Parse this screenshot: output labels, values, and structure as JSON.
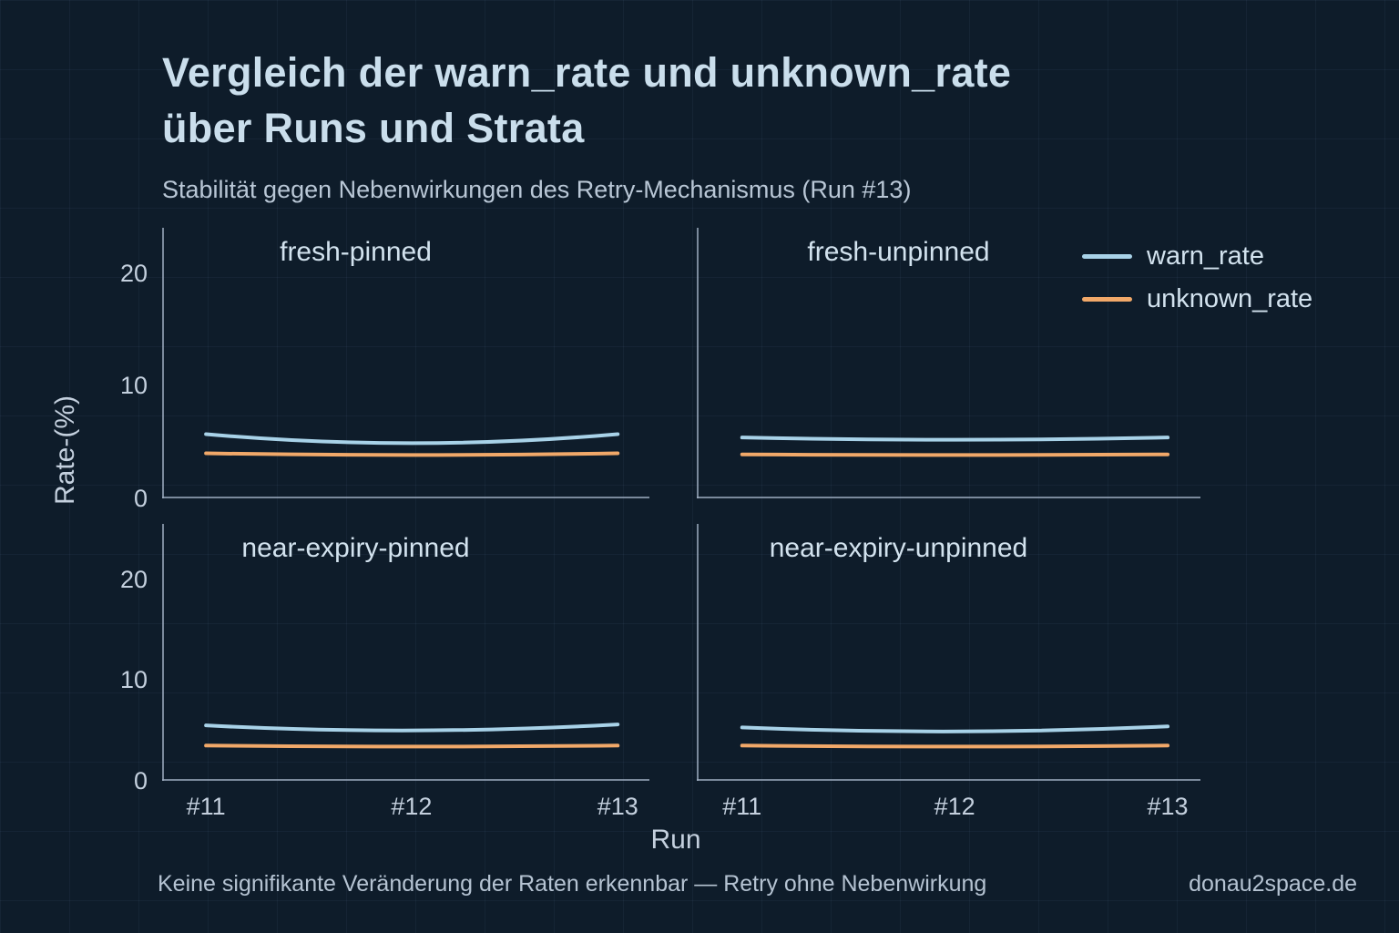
{
  "chart_data": {
    "type": "line",
    "title_line1": "Vergleich der warn_rate und unknown_rate",
    "title_line2": "über Runs und Strata",
    "subtitle": "Stabilität gegen Nebenwirkungen des Retry-Mechanismus (Run #13)",
    "xlabel": "Run",
    "ylabel": "Rate-(%)",
    "x": [
      "#11",
      "#12",
      "#13"
    ],
    "yticks": [
      0,
      10,
      20
    ],
    "grid": true,
    "legend_position": "top-right",
    "legend": [
      {
        "name": "warn_rate",
        "color": "#a8d2e8"
      },
      {
        "name": "unknown_rate",
        "color": "#f1a869"
      }
    ],
    "facets": [
      {
        "label": "fresh-pinned",
        "ylim": [
          0,
          24
        ],
        "series": {
          "warn_rate": [
            5.7,
            4.9,
            5.7
          ],
          "unknown_rate": [
            4.0,
            3.85,
            4.0
          ]
        }
      },
      {
        "label": "fresh-unpinned",
        "ylim": [
          0,
          24
        ],
        "series": {
          "warn_rate": [
            5.4,
            5.2,
            5.4
          ],
          "unknown_rate": [
            3.9,
            3.85,
            3.9
          ]
        }
      },
      {
        "label": "near-expiry-pinned",
        "ylim": [
          0,
          25.5
        ],
        "series": {
          "warn_rate": [
            5.5,
            5.0,
            5.6
          ],
          "unknown_rate": [
            3.5,
            3.4,
            3.5
          ]
        }
      },
      {
        "label": "near-expiry-unpinned",
        "ylim": [
          0,
          25.5
        ],
        "series": {
          "warn_rate": [
            5.3,
            4.9,
            5.4
          ],
          "unknown_rate": [
            3.5,
            3.4,
            3.5
          ]
        }
      }
    ],
    "footer_note": "Keine signifikante Veränderung der Raten erkennbar — Retry ohne Nebenwirkung",
    "watermark": "donau2space.de"
  }
}
